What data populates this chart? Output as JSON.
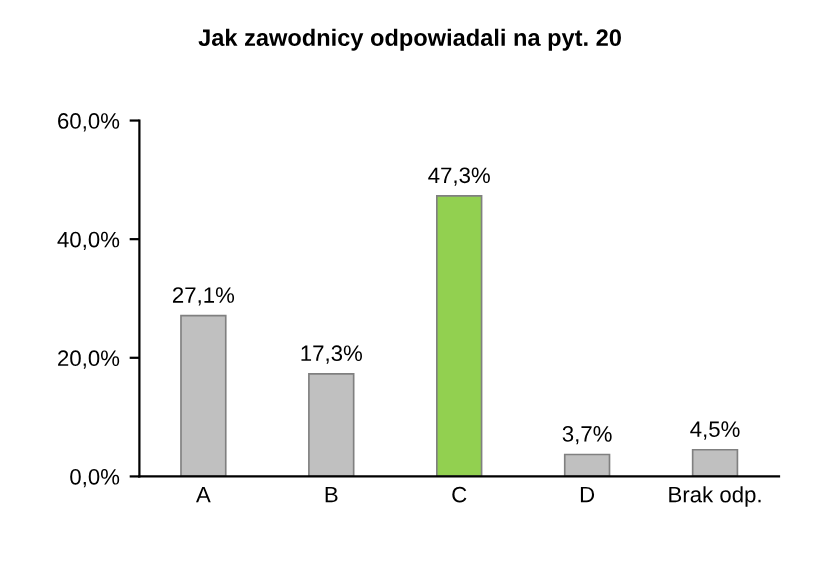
{
  "chart_data": {
    "type": "bar",
    "title": "Jak zawodnicy odpowiadali na pyt. 20",
    "categories": [
      "A",
      "B",
      "C",
      "D",
      "Brak odp."
    ],
    "values": [
      27.1,
      17.3,
      47.3,
      3.7,
      4.5
    ],
    "colors": [
      "#c0c0c0",
      "#c0c0c0",
      "#92d050",
      "#c0c0c0",
      "#c0c0c0"
    ],
    "value_labels": [
      "27,1%",
      "17,3%",
      "47,3%",
      "3,7%",
      "4,5%"
    ],
    "ylim": [
      0,
      60
    ],
    "yticks": [
      {
        "value": 0,
        "label": "0,0%"
      },
      {
        "value": 20,
        "label": "20,0%"
      },
      {
        "value": 40,
        "label": "40,0%"
      },
      {
        "value": 60,
        "label": "60,0%"
      }
    ],
    "grid": false
  }
}
